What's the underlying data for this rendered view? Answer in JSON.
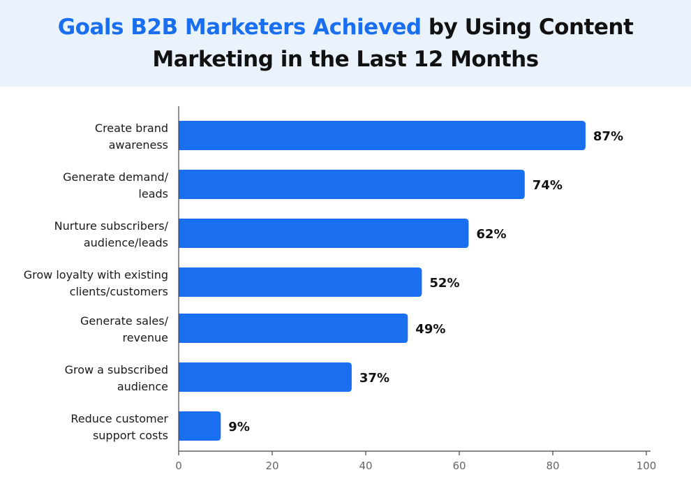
{
  "chart_data": {
    "type": "bar",
    "orientation": "horizontal",
    "title_highlight": "Goals B2B Marketers Achieved",
    "title_rest": "by Using Content Marketing in the Last 12 Months",
    "categories": [
      "Create brand awareness",
      "Generate demand/ leads",
      "Nurture subscribers/ audience/leads",
      "Grow loyalty with existing clients/customers",
      "Generate sales/ revenue",
      "Grow a subscribed audience",
      "Reduce customer support costs"
    ],
    "category_lines": [
      [
        "Create brand",
        "awareness"
      ],
      [
        "Generate demand/",
        "leads"
      ],
      [
        "Nurture subscribers/",
        "audience/leads"
      ],
      [
        "Grow loyalty with existing",
        "clients/customers"
      ],
      [
        "Generate sales/",
        "revenue"
      ],
      [
        "Grow a subscribed",
        "audience"
      ],
      [
        "Reduce customer",
        "support costs"
      ]
    ],
    "values": [
      87,
      74,
      62,
      52,
      49,
      37,
      9
    ],
    "data_labels": [
      "87%",
      "74%",
      "62%",
      "52%",
      "49%",
      "37%",
      "9%"
    ],
    "xlim": [
      0,
      100
    ],
    "xticks": [
      0,
      20,
      40,
      60,
      80,
      100
    ],
    "xlabel": "",
    "ylabel": "",
    "grid": false,
    "legend": "none",
    "bar_color": "#1a6ff0",
    "highlight_color": "#1a6ff0"
  }
}
